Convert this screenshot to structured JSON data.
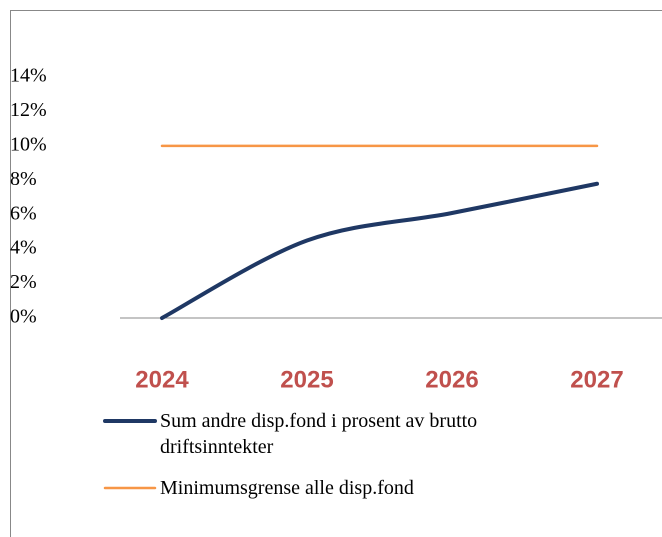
{
  "chart_data": {
    "type": "line",
    "categories": [
      "2024",
      "2025",
      "2026",
      "2027"
    ],
    "series": [
      {
        "name": "Sum andre disp.fond i prosent av brutto driftsinntekter",
        "color": "#1f3864",
        "values": [
          0,
          4.5,
          6.1,
          7.8
        ]
      },
      {
        "name": "Minimumsgrense alle disp.fond",
        "color": "#f79646",
        "values": [
          10,
          10,
          10,
          10
        ]
      }
    ],
    "ylim": [
      0,
      14
    ],
    "yticks": [
      {
        "value": 0,
        "label": "0%"
      },
      {
        "value": 2,
        "label": "2%"
      },
      {
        "value": 4,
        "label": "4%"
      },
      {
        "value": 6,
        "label": "6%"
      },
      {
        "value": 8,
        "label": "8%"
      },
      {
        "value": 10,
        "label": "10%"
      },
      {
        "value": 12,
        "label": "12%"
      },
      {
        "value": 14,
        "label": "14%"
      }
    ]
  }
}
